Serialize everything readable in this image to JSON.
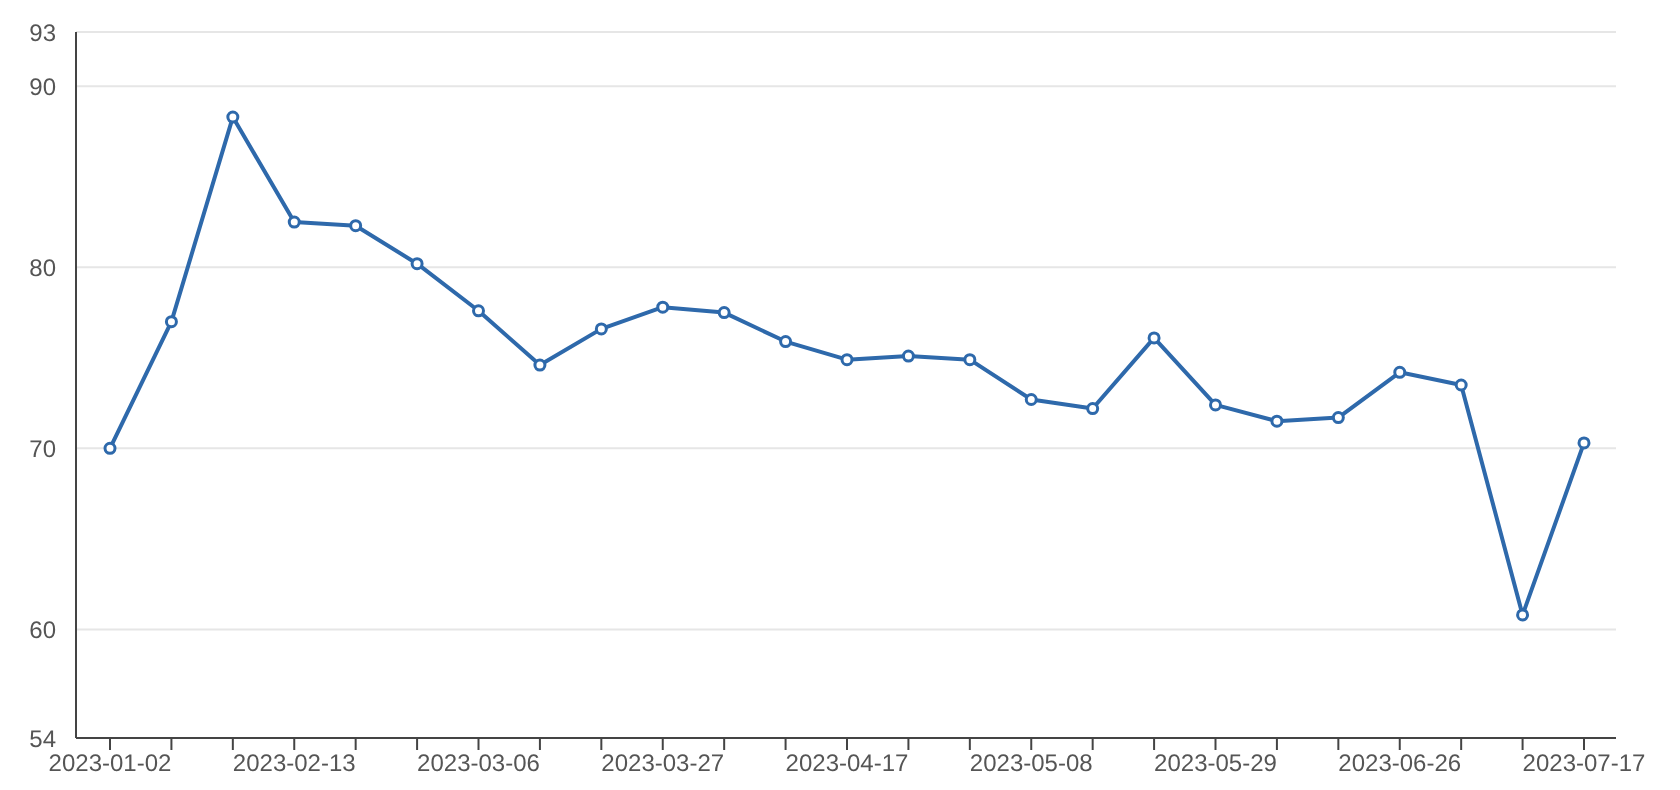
{
  "chart_data": {
    "type": "line",
    "categories": [
      "2023-01-02",
      null,
      null,
      "2023-02-13",
      null,
      null,
      "2023-03-06",
      null,
      null,
      "2023-03-27",
      null,
      null,
      "2023-04-17",
      null,
      null,
      "2023-05-08",
      null,
      null,
      "2023-05-29",
      null,
      null,
      "2023-06-26",
      null,
      null,
      "2023-07-17"
    ],
    "series": [
      {
        "color": "#2e69ab",
        "values": [
          70.0,
          77.0,
          88.3,
          82.5,
          82.3,
          80.2,
          77.6,
          74.6,
          76.6,
          77.8,
          77.5,
          75.9,
          74.9,
          75.1,
          74.9,
          72.7,
          72.2,
          76.1,
          72.4,
          71.5,
          71.7,
          74.2,
          73.5,
          60.8,
          70.3
        ]
      }
    ],
    "ylim": [
      54,
      93
    ],
    "yticks": [
      54,
      60,
      70,
      80,
      90,
      93
    ],
    "grid": "y",
    "marker": "circle",
    "line_style": "solid"
  }
}
